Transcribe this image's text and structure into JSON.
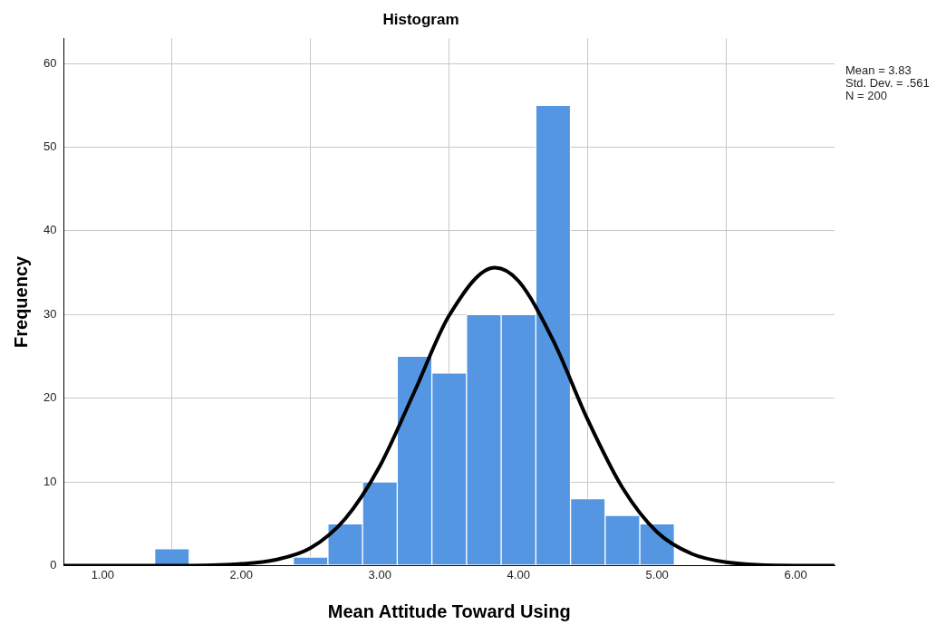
{
  "chart_data": {
    "type": "histogram",
    "title": "Histogram",
    "xlabel": "Mean Attitude Toward Using",
    "ylabel": "Frequency",
    "bins": [
      1.375,
      1.625,
      1.875,
      2.125,
      2.375,
      2.625,
      2.875,
      3.125,
      3.375,
      3.625,
      3.875,
      4.125,
      4.375,
      4.625,
      4.875,
      5.125
    ],
    "series": [
      {
        "values": [
          2,
          0,
          0,
          0,
          1,
          5,
          10,
          25,
          23,
          30,
          30,
          55,
          8,
          6,
          5
        ],
        "color": "#5596e3"
      },
      {
        "type": "line",
        "color": "#000000",
        "x": [
          0.72,
          1.0,
          1.5,
          2.0,
          2.25,
          2.5,
          2.75,
          3.0,
          3.25,
          3.5,
          3.83,
          4.0,
          4.25,
          4.5,
          4.75,
          5.0,
          5.25,
          5.5,
          6.0,
          6.28
        ],
        "values": [
          0,
          0,
          0,
          0.2,
          0.7,
          2.1,
          5.6,
          11.9,
          20.8,
          29.9,
          35.6,
          34,
          26.9,
          17.4,
          9.3,
          4,
          1.4,
          0.4,
          0,
          0
        ]
      }
    ],
    "xlim": [
      0.72,
      6.28
    ],
    "xticks": [
      {
        "value": 1,
        "label": "1.00"
      },
      {
        "value": 2,
        "label": "2.00"
      },
      {
        "value": 3,
        "label": "3.00"
      },
      {
        "value": 4,
        "label": "4.00"
      },
      {
        "value": 5,
        "label": "5.00"
      },
      {
        "value": 6,
        "label": "6.00"
      }
    ],
    "ylim": [
      0,
      63
    ],
    "yticks": [
      0,
      10,
      20,
      30,
      40,
      50,
      60
    ],
    "grid": true,
    "marker": "none",
    "annotations": [
      "Mean = 3.83",
      "Std. Dev. = .561",
      "N = 200"
    ]
  }
}
